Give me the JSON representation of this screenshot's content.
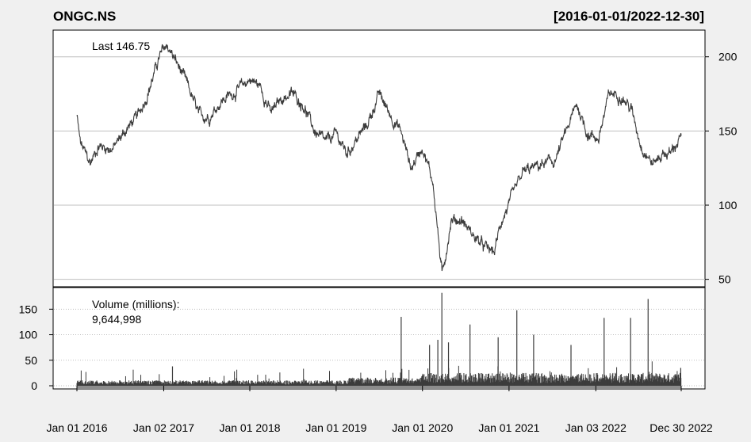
{
  "chart_data": [
    {
      "type": "line",
      "title": "ONGC.NS",
      "date_range": "[2016-01-01/2022-12-30]",
      "last_label": "Last 146.75",
      "last_value": 146.75,
      "x_tick_labels": [
        "Jan 01 2016",
        "Jan 02 2017",
        "Jan 01 2018",
        "Jan 01 2019",
        "Jan 01 2020",
        "Jan 01 2021",
        "Jan 03 2022",
        "Dec 30 2022"
      ],
      "ylim": [
        45,
        218
      ],
      "y_ticks": [
        50,
        100,
        150,
        200
      ],
      "grid": true,
      "series": [
        {
          "x": [
            "2016-01-01",
            "2016-01-15",
            "2016-02-26",
            "2016-04-01",
            "2016-06-01",
            "2016-08-01",
            "2016-09-15",
            "2016-11-01",
            "2016-12-15",
            "2017-01-15",
            "2017-03-01",
            "2017-04-15",
            "2017-06-01",
            "2017-07-15",
            "2017-09-01",
            "2017-10-15",
            "2017-11-15",
            "2018-01-01",
            "2018-02-15",
            "2018-04-01",
            "2018-05-15",
            "2018-07-01",
            "2018-08-15",
            "2018-10-01",
            "2018-11-15",
            "2019-01-01",
            "2019-02-15",
            "2019-04-01",
            "2019-05-15",
            "2019-07-01",
            "2019-08-15",
            "2019-10-01",
            "2019-11-15",
            "2020-01-01",
            "2020-02-15",
            "2020-03-24",
            "2020-05-01",
            "2020-06-15",
            "2020-08-01",
            "2020-09-15",
            "2020-10-30",
            "2020-12-01",
            "2021-01-15",
            "2021-03-01",
            "2021-04-15",
            "2021-06-01",
            "2021-07-15",
            "2021-09-01",
            "2021-10-15",
            "2021-11-30",
            "2022-01-15",
            "2022-03-01",
            "2022-04-15",
            "2022-06-01",
            "2022-07-15",
            "2022-09-01",
            "2022-10-15",
            "2022-11-15",
            "2022-12-30"
          ],
          "y": [
            160,
            142,
            128,
            140,
            138,
            152,
            160,
            178,
            200,
            208,
            195,
            180,
            160,
            160,
            170,
            175,
            178,
            185,
            180,
            162,
            172,
            175,
            168,
            150,
            142,
            148,
            135,
            145,
            155,
            175,
            162,
            150,
            125,
            140,
            115,
            52,
            90,
            90,
            80,
            72,
            68,
            90,
            105,
            122,
            125,
            128,
            130,
            150,
            168,
            148,
            145,
            175,
            175,
            165,
            140,
            128,
            135,
            135,
            146.75
          ]
        }
      ]
    },
    {
      "type": "bar",
      "label_title": "Volume (millions):",
      "last_volume": "9,644,998",
      "ylim": [
        0,
        180
      ],
      "y_ticks": [
        0,
        50,
        100,
        150
      ],
      "base_level": 6,
      "spikes": [
        {
          "x": "2017-02-08",
          "value": 38
        },
        {
          "x": "2019-10-03",
          "value": 135
        },
        {
          "x": "2020-01-31",
          "value": 80
        },
        {
          "x": "2020-03-06",
          "value": 90
        },
        {
          "x": "2020-03-23",
          "value": 182
        },
        {
          "x": "2020-04-20",
          "value": 85
        },
        {
          "x": "2020-07-20",
          "value": 120
        },
        {
          "x": "2020-11-16",
          "value": 95
        },
        {
          "x": "2021-02-03",
          "value": 148
        },
        {
          "x": "2021-04-15",
          "value": 100
        },
        {
          "x": "2021-09-20",
          "value": 80
        },
        {
          "x": "2022-02-07",
          "value": 133
        },
        {
          "x": "2022-05-30",
          "value": 133
        },
        {
          "x": "2022-08-12",
          "value": 170
        },
        {
          "x": "2022-12-28",
          "value": 35
        }
      ]
    }
  ],
  "colors": {
    "price_line": "#3c3c3c",
    "volume_bar": "#3c3c3c",
    "last_label": "#00cc00",
    "grid": "#bfbfbf",
    "background": "#f0f0f0",
    "panel": "#ffffff",
    "bottom_strip": "#8c8c8c"
  }
}
